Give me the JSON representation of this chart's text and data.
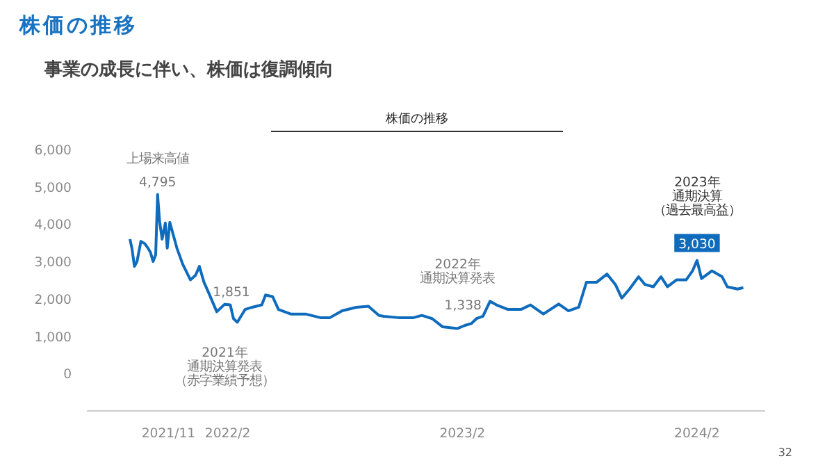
{
  "chart_data": {
    "type": "line",
    "title": "株価の推移",
    "subtitle": "事業の成長に伴い、株価は復調傾向",
    "x": [
      "2021-09-02",
      "2021-09-05",
      "2021-09-09",
      "2021-09-13",
      "2021-09-19",
      "2021-09-25",
      "2021-09-30",
      "2021-10-04",
      "2021-10-08",
      "2021-10-12",
      "2021-10-15",
      "2021-10-18",
      "2021-10-22",
      "2021-10-27",
      "2021-10-30",
      "2021-11-03",
      "2021-11-14",
      "2021-11-23",
      "2021-12-05",
      "2021-12-13",
      "2021-12-19",
      "2021-12-26",
      "2022-01-03",
      "2022-01-15",
      "2022-01-27",
      "2022-02-05",
      "2022-02-10",
      "2022-02-16",
      "2022-02-28",
      "2022-03-11",
      "2022-03-26",
      "2022-04-01",
      "2022-04-12",
      "2022-04-21",
      "2022-05-10",
      "2022-06-02",
      "2022-06-25",
      "2022-07-10",
      "2022-07-29",
      "2022-08-20",
      "2022-09-08",
      "2022-09-24",
      "2022-10-02",
      "2022-10-25",
      "2022-11-17",
      "2022-11-30",
      "2022-12-16",
      "2023-01-01",
      "2023-01-24",
      "2023-02-05",
      "2023-02-15",
      "2023-02-23",
      "2023-03-05",
      "2023-03-16",
      "2023-03-26",
      "2023-04-13",
      "2023-05-03",
      "2023-05-18",
      "2023-06-07",
      "2023-07-01",
      "2023-07-16",
      "2023-08-01",
      "2023-08-13",
      "2023-08-29",
      "2023-09-14",
      "2023-09-27",
      "2023-10-07",
      "2023-10-19",
      "2023-11-02",
      "2023-11-12",
      "2023-11-25",
      "2023-12-07",
      "2023-12-17",
      "2023-12-31",
      "2024-01-15",
      "2024-01-25",
      "2024-02-01",
      "2024-02-08",
      "2024-02-24",
      "2024-03-11",
      "2024-03-19",
      "2024-04-04",
      "2024-04-13"
    ],
    "series": [
      {
        "color": "#0f6cbd",
        "values": [
          3600,
          3360,
          2870,
          3000,
          3540,
          3480,
          3360,
          3240,
          3000,
          3180,
          4795,
          4090,
          3600,
          4030,
          3360,
          4050,
          3360,
          2930,
          2510,
          2630,
          2870,
          2450,
          2140,
          1655,
          1851,
          1840,
          1470,
          1375,
          1715,
          1775,
          1840,
          2105,
          2057,
          1715,
          1594,
          1594,
          1497,
          1497,
          1680,
          1775,
          1800,
          1558,
          1533,
          1497,
          1497,
          1558,
          1472,
          1254,
          1205,
          1290,
          1338,
          1472,
          1533,
          1935,
          1838,
          1716,
          1716,
          1838,
          1594,
          1862,
          1680,
          1777,
          2446,
          2446,
          2665,
          2385,
          2020,
          2263,
          2592,
          2385,
          2324,
          2592,
          2324,
          2507,
          2507,
          2750,
          3030,
          2543,
          2750,
          2592,
          2324,
          2263,
          2300
        ]
      }
    ],
    "xlim": [
      "2021-06-27",
      "2024-05-17"
    ],
    "xticks": [
      {
        "value": "2021-11",
        "label": "2021/11"
      },
      {
        "value": "2022-02",
        "label": "2022/2"
      },
      {
        "value": "2023-02",
        "label": "2023/2"
      },
      {
        "value": "2024-02",
        "label": "2024/2"
      }
    ],
    "ylim": [
      -1000,
      6000
    ],
    "yticks": [
      0,
      {
        "value": 1000,
        "label": "1,000"
      },
      {
        "value": 2000,
        "label": "2,000"
      },
      {
        "value": 3000,
        "label": "3,000"
      },
      {
        "value": 4000,
        "label": "4,000"
      },
      {
        "value": 5000,
        "label": "5,000"
      },
      {
        "value": 6000,
        "label": "6,000"
      }
    ],
    "grid": false,
    "marker": "none",
    "line_style": "solid",
    "annotations": [
      "株価の推移",
      {
        "text": "上場来高値",
        "x": "2021-10-15",
        "y": 4795
      },
      {
        "text": "4,795",
        "x": "2021-10-15",
        "y": 4795
      },
      {
        "text": "1,851",
        "x": "2022-01-27",
        "y": 1851
      },
      "2021年",
      "通期決算発表",
      "（赤字業績予想）",
      "2022年",
      "通期決算発表",
      {
        "text": "1,338",
        "x": "2023-02-15",
        "y": 1338
      },
      "2023年",
      "通期決算",
      "（過去最高益）",
      {
        "text": "3,030",
        "x": "2024-02-01",
        "y": 3030
      },
      "32"
    ]
  }
}
